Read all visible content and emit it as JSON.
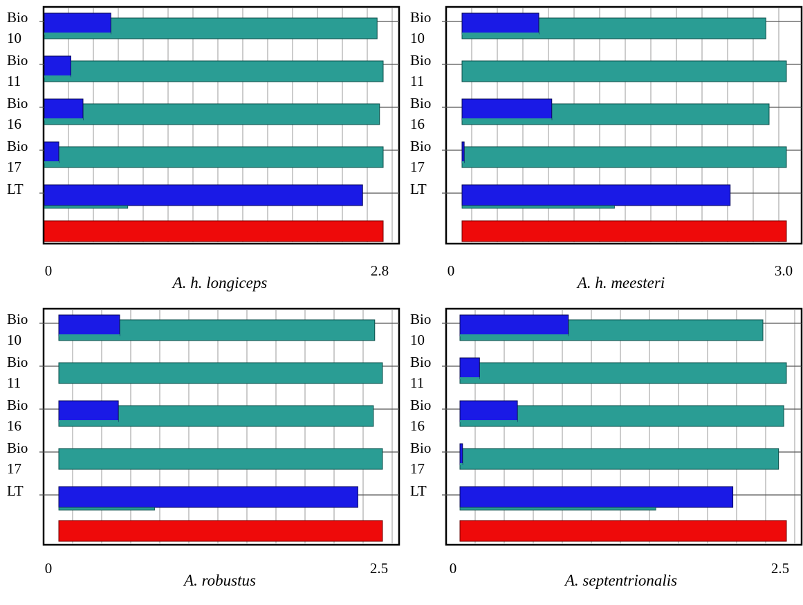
{
  "colors": {
    "with_only": "#1a1ae6",
    "without": "#2a9d94",
    "all": "#ee0a0a"
  },
  "chart_data": [
    {
      "type": "bar",
      "orientation": "horizontal",
      "title": "A. h. longiceps",
      "xlim": [
        0,
        2.8
      ],
      "x_tick_labels": [
        "0",
        "2.8"
      ],
      "categories": [
        "Bio 10",
        "Bio 11",
        "Bio 16",
        "Bio 17",
        "LT"
      ],
      "series": [
        {
          "values": [
            0.55,
            0.22,
            0.32,
            0.12,
            2.63
          ]
        },
        {
          "values": [
            2.75,
            2.8,
            2.77,
            2.8,
            0.69
          ]
        }
      ],
      "total": 2.8,
      "grid": true
    },
    {
      "type": "bar",
      "orientation": "horizontal",
      "title": "A. h. meesteri",
      "xlim": [
        0,
        3.0
      ],
      "x_tick_labels": [
        "0",
        "3.0"
      ],
      "categories": [
        "Bio 10",
        "Bio 11",
        "Bio 16",
        "Bio 17",
        "LT"
      ],
      "series": [
        {
          "values": [
            0.71,
            0.0,
            0.83,
            0.02,
            2.48
          ]
        },
        {
          "values": [
            2.81,
            3.0,
            2.84,
            3.0,
            1.41
          ]
        }
      ],
      "total": 3.0,
      "grid": true
    },
    {
      "type": "bar",
      "orientation": "horizontal",
      "title": "A. robustus",
      "xlim": [
        0,
        2.5
      ],
      "x_tick_labels": [
        "0",
        "2.5"
      ],
      "categories": [
        "Bio 10",
        "Bio 11",
        "Bio 16",
        "Bio 17",
        "LT"
      ],
      "series": [
        {
          "values": [
            0.47,
            0.0,
            0.46,
            0.0,
            2.31
          ]
        },
        {
          "values": [
            2.44,
            2.5,
            2.43,
            2.5,
            0.74
          ]
        }
      ],
      "total": 2.5,
      "grid": true
    },
    {
      "type": "bar",
      "orientation": "horizontal",
      "title": "A. septentrionalis",
      "xlim": [
        0,
        2.5
      ],
      "x_tick_labels": [
        "0",
        "2.5"
      ],
      "categories": [
        "Bio 10",
        "Bio 11",
        "Bio 16",
        "Bio 17",
        "LT"
      ],
      "series": [
        {
          "values": [
            0.83,
            0.15,
            0.44,
            0.02,
            2.09
          ]
        },
        {
          "values": [
            2.32,
            2.5,
            2.48,
            2.44,
            1.5
          ]
        }
      ],
      "total": 2.5,
      "grid": true
    }
  ]
}
